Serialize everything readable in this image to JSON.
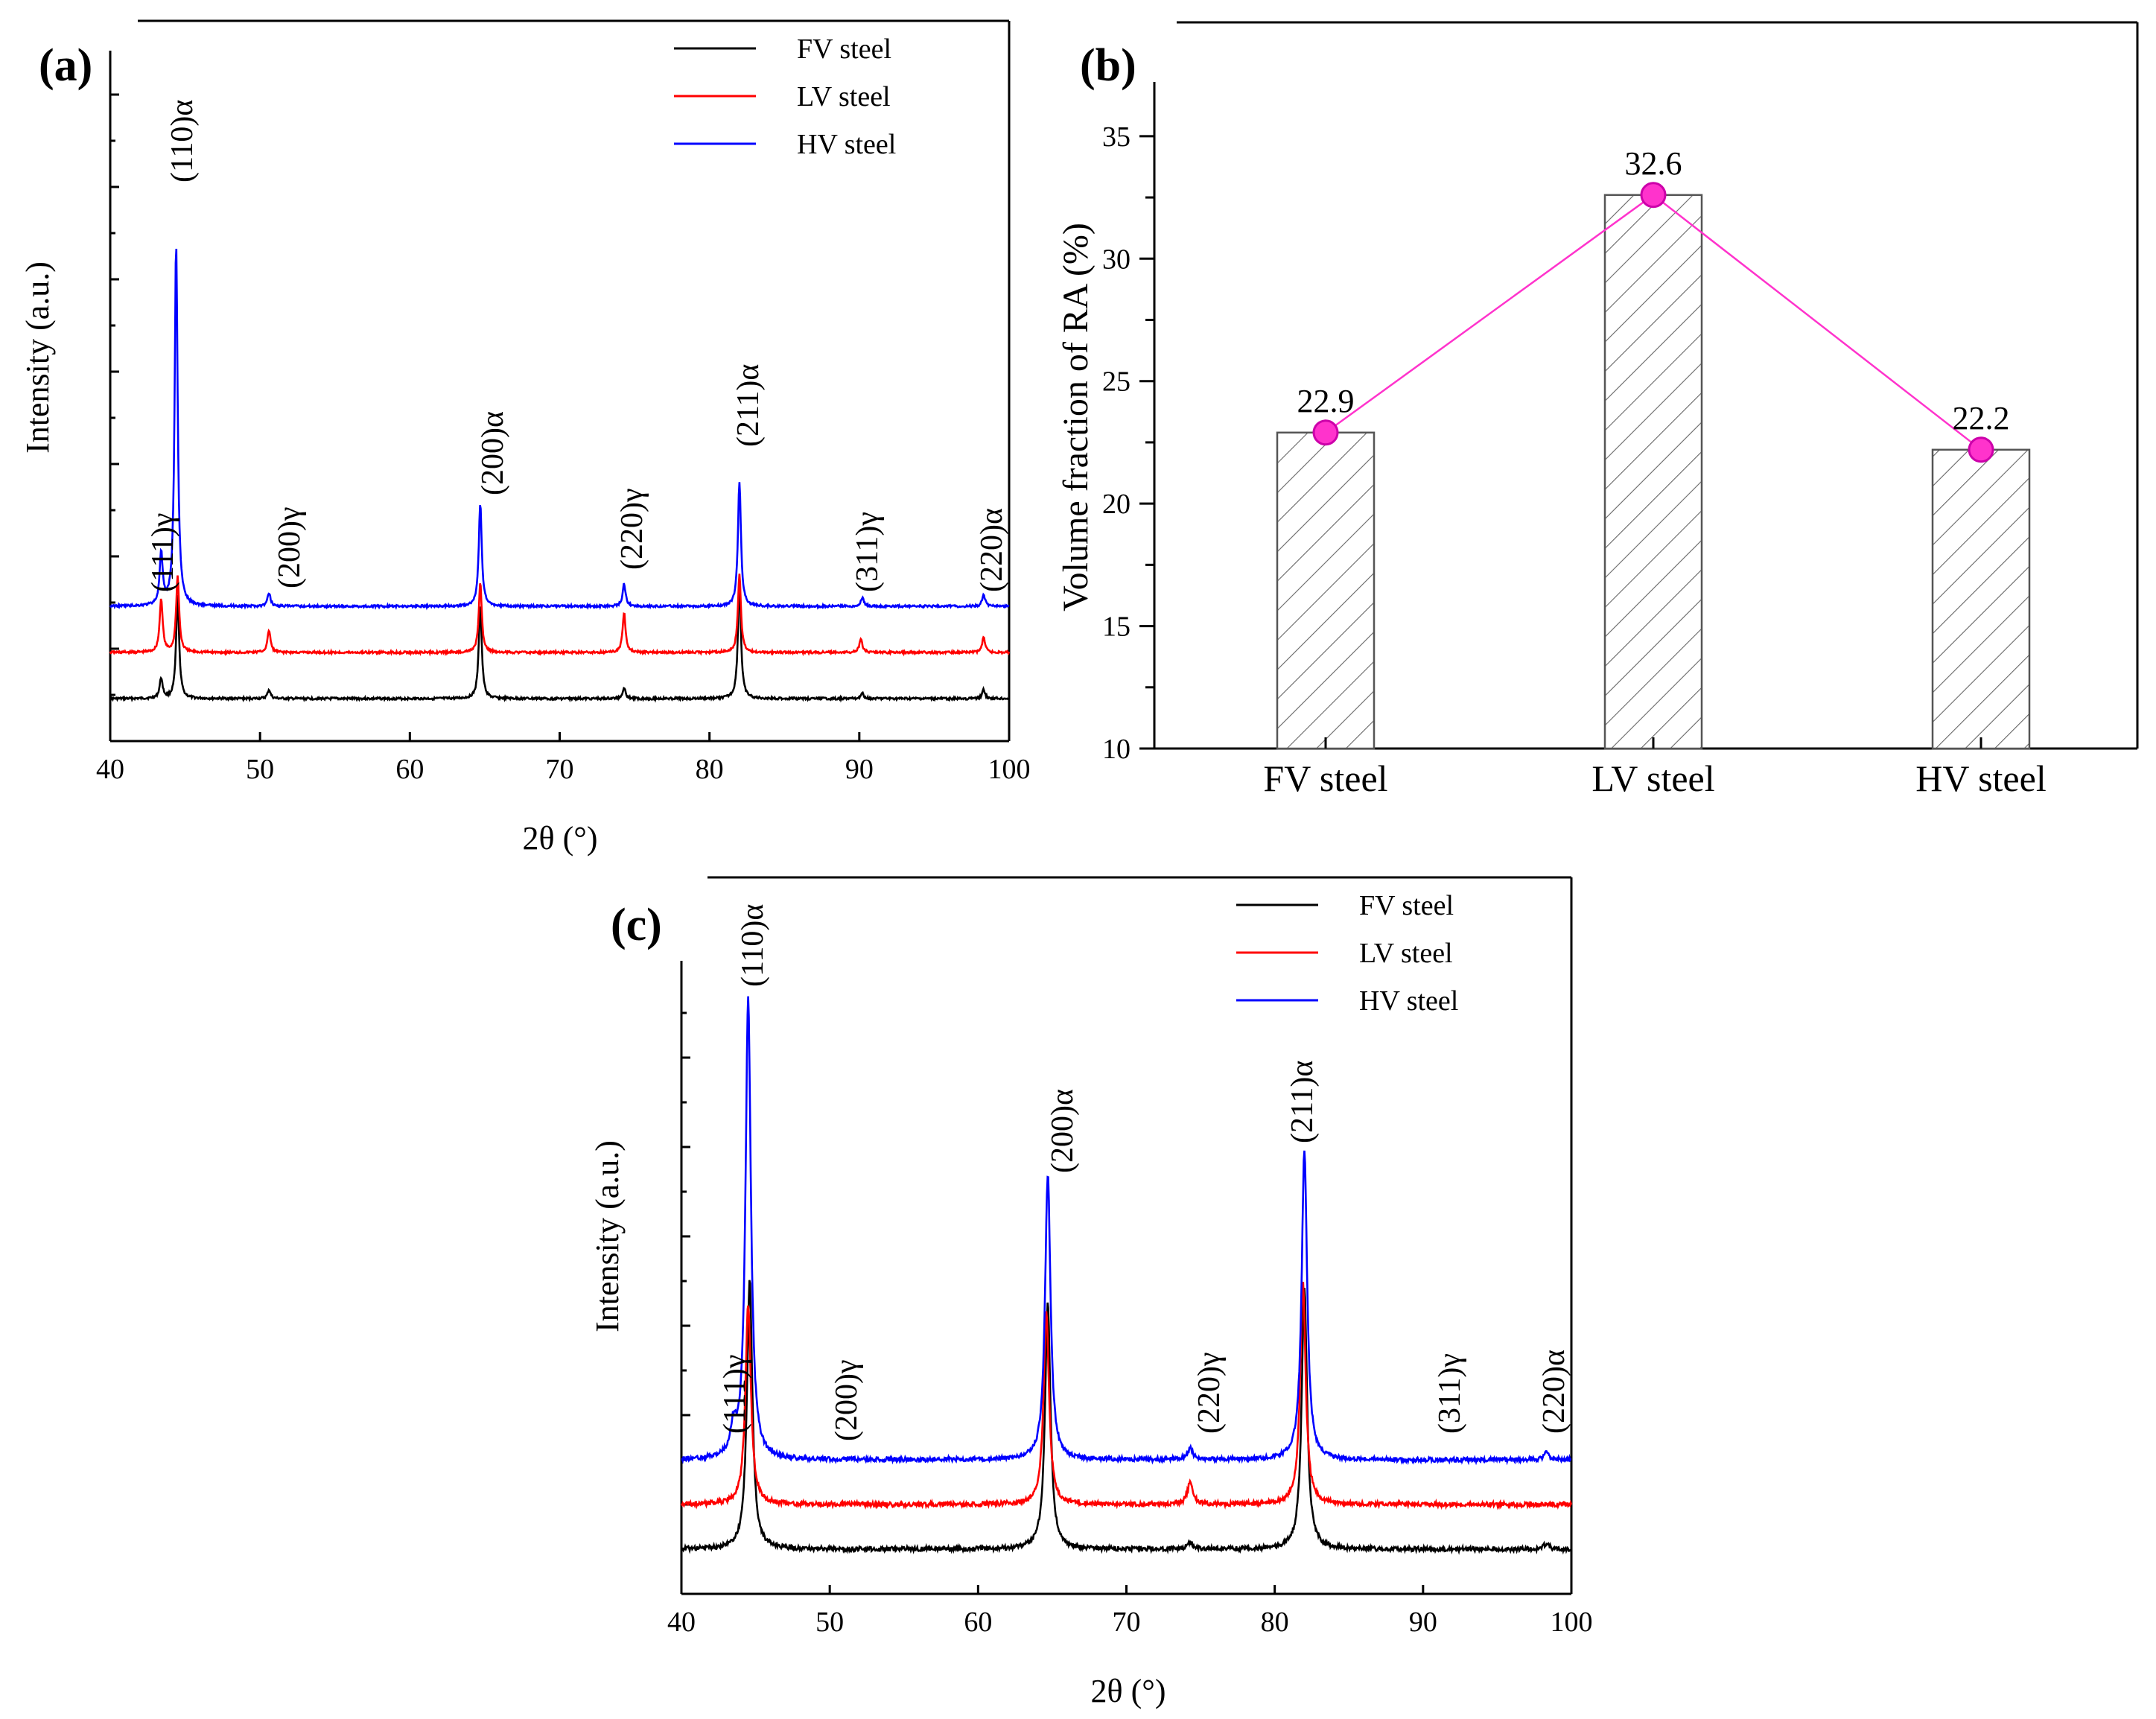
{
  "chart_data": [
    {
      "id": "a",
      "type": "line",
      "panel_label": "(a)",
      "xlabel": "2θ (°)",
      "ylabel": "Intensity (a.u.)",
      "xlim": [
        40,
        100
      ],
      "x_ticks": [
        "40",
        "50",
        "60",
        "70",
        "80",
        "90",
        "100"
      ],
      "legend": {
        "position": "top-right"
      },
      "series": [
        {
          "name": "FV steel",
          "color": "#000000",
          "offset": 0,
          "peaks": [
            [
              43.4,
              0.45
            ],
            [
              44.5,
              2.3
            ],
            [
              50.6,
              0.2
            ],
            [
              64.7,
              2.1
            ],
            [
              74.3,
              0.25
            ],
            [
              82.0,
              2.6
            ],
            [
              90.2,
              0.12
            ],
            [
              98.3,
              0.2
            ]
          ]
        },
        {
          "name": "LV steel",
          "color": "#ff0000",
          "offset": 1,
          "peaks": [
            [
              43.4,
              1.2
            ],
            [
              44.5,
              1.7
            ],
            [
              50.6,
              0.5
            ],
            [
              64.7,
              1.55
            ],
            [
              74.3,
              0.9
            ],
            [
              82.0,
              1.75
            ],
            [
              90.1,
              0.3
            ],
            [
              98.3,
              0.35
            ]
          ]
        },
        {
          "name": "HV steel",
          "color": "#0000ff",
          "offset": 2,
          "peaks": [
            [
              43.4,
              1.15
            ],
            [
              44.4,
              8.1
            ],
            [
              50.6,
              0.3
            ],
            [
              64.7,
              2.3
            ],
            [
              74.3,
              0.5
            ],
            [
              82.0,
              2.8
            ],
            [
              90.2,
              0.2
            ],
            [
              98.3,
              0.25
            ]
          ]
        }
      ],
      "annotations": [
        "(111)γ",
        "(110)α",
        "(200)γ",
        "(200)α",
        "(220)γ",
        "(211)α",
        "(311)γ",
        "(220)α"
      ]
    },
    {
      "id": "b",
      "type": "bar",
      "panel_label": "(b)",
      "categories": [
        "FV steel",
        "LV steel",
        "HV steel"
      ],
      "values": [
        22.9,
        32.6,
        22.2
      ],
      "data_labels": [
        "22.9",
        "32.6",
        "22.2"
      ],
      "xlabel": "",
      "ylabel": "Volume fraction of RA (%)",
      "ylim": [
        10,
        36
      ],
      "y_ticks": [
        "10",
        "15",
        "20",
        "25",
        "30",
        "35"
      ],
      "overlay_line_color": "#ff33cc",
      "bar_pattern": "hatched"
    },
    {
      "id": "c",
      "type": "line",
      "panel_label": "(c)",
      "xlabel": "2θ (°)",
      "ylabel": "Intensity (a.u.)",
      "xlim": [
        40,
        100
      ],
      "x_ticks": [
        "40",
        "50",
        "60",
        "70",
        "80",
        "90",
        "100"
      ],
      "legend": {
        "position": "top-right"
      },
      "series": [
        {
          "name": "FV steel",
          "color": "#000000",
          "offset": 0,
          "peaks": [
            [
              44.6,
              6.0
            ],
            [
              64.7,
              5.5
            ],
            [
              74.3,
              0.15
            ],
            [
              82.0,
              5.8
            ],
            [
              98.3,
              0.12
            ]
          ]
        },
        {
          "name": "LV steel",
          "color": "#ff0000",
          "offset": 1,
          "peaks": [
            [
              44.5,
              4.5
            ],
            [
              64.6,
              4.3
            ],
            [
              74.3,
              0.5
            ],
            [
              81.9,
              5.0
            ]
          ]
        },
        {
          "name": "HV steel",
          "color": "#0000ff",
          "offset": 2,
          "peaks": [
            [
              43.5,
              0.6
            ],
            [
              44.5,
              10.3
            ],
            [
              64.7,
              6.4
            ],
            [
              74.3,
              0.25
            ],
            [
              82.0,
              6.9
            ],
            [
              98.3,
              0.15
            ]
          ]
        }
      ],
      "annotations": [
        "(111)γ",
        "(110)α",
        "(200)γ",
        "(200)α",
        "(220)γ",
        "(211)α",
        "(311)γ",
        "(220)α"
      ]
    }
  ]
}
